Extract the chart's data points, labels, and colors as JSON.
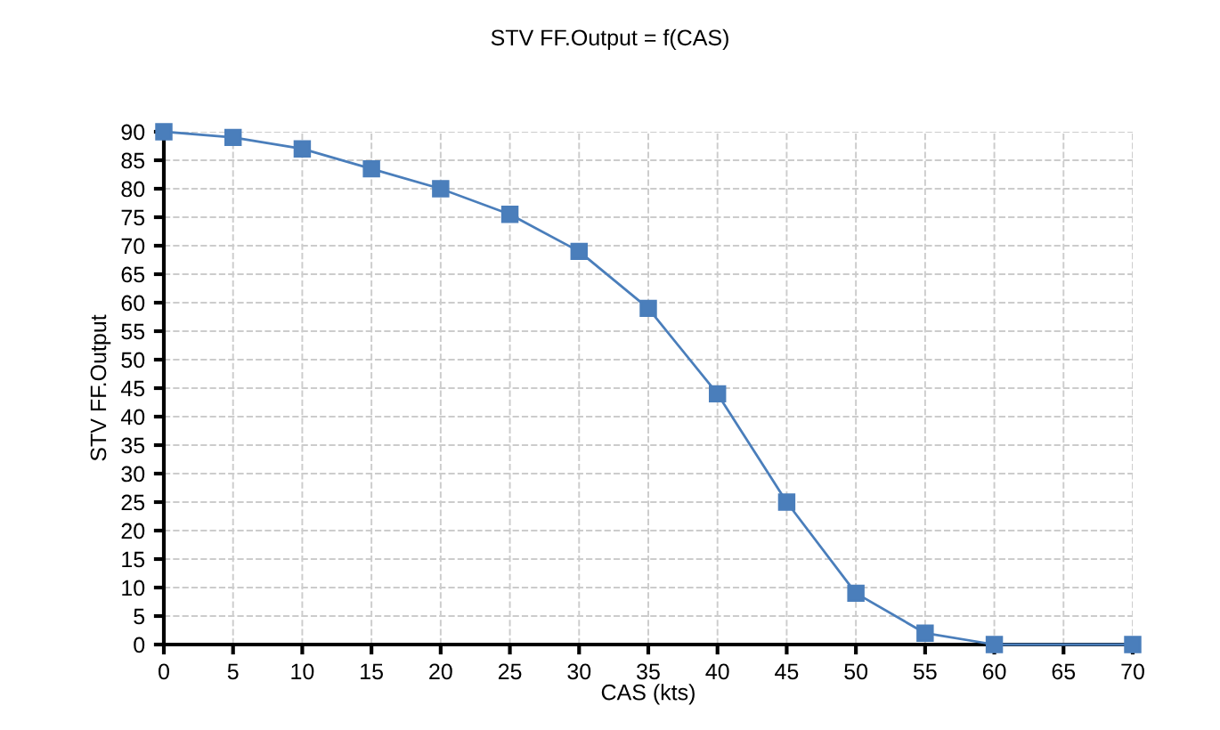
{
  "chart_data": {
    "type": "line",
    "title": "STV FF.Output = f(CAS)",
    "xlabel": "CAS (kts)",
    "ylabel": "STV FF.Output",
    "x": [
      0,
      5,
      10,
      15,
      20,
      25,
      30,
      35,
      40,
      45,
      50,
      55,
      60,
      70
    ],
    "series": [
      {
        "color": "#4a7ebb",
        "values": [
          90,
          89,
          87,
          83.5,
          80,
          75.5,
          69,
          59,
          44,
          25,
          9,
          2,
          0,
          0
        ]
      }
    ],
    "xlim": [
      0,
      70
    ],
    "xticks": [
      0,
      5,
      10,
      15,
      20,
      25,
      30,
      35,
      40,
      45,
      50,
      55,
      60,
      65,
      70
    ],
    "ylim": [
      0,
      90
    ],
    "yticks": [
      0,
      5,
      10,
      15,
      20,
      25,
      30,
      35,
      40,
      45,
      50,
      55,
      60,
      65,
      70,
      75,
      80,
      85,
      90
    ],
    "grid": true,
    "marker": "square",
    "line_style": "solid"
  }
}
